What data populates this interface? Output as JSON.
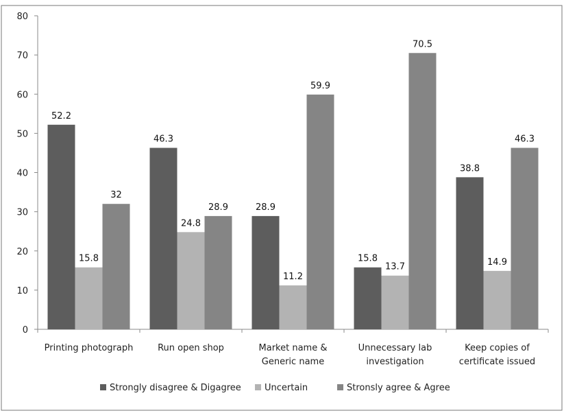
{
  "chart_data": {
    "type": "bar",
    "title": "",
    "xlabel": "",
    "ylabel": "",
    "ylim": [
      0,
      80
    ],
    "yticks": [
      0,
      10,
      20,
      30,
      40,
      50,
      60,
      70,
      80
    ],
    "grid": false,
    "legend_position": "bottom",
    "categories": [
      [
        "Printing photograph"
      ],
      [
        "Run open shop"
      ],
      [
        "Market name &",
        "Generic name"
      ],
      [
        "Unnecessary lab",
        "investigation"
      ],
      [
        "Keep copies of",
        "certificate issued"
      ]
    ],
    "value_labels": [
      [
        "52.2",
        "15.8",
        "32"
      ],
      [
        "46.3",
        "24.8",
        "28.9"
      ],
      [
        "28.9",
        "11.2",
        "59.9"
      ],
      [
        "15.8",
        "13.7",
        "70.5"
      ],
      [
        "38.8",
        "14.9",
        "46.3"
      ]
    ],
    "series": [
      {
        "name": "Strongly disagree & Digagree",
        "color": "#5d5d5d",
        "values": [
          52.2,
          46.3,
          28.9,
          15.8,
          38.8
        ]
      },
      {
        "name": "Uncertain",
        "color": "#b3b3b3",
        "values": [
          15.8,
          24.8,
          11.2,
          13.7,
          14.9
        ]
      },
      {
        "name": "Stronsly agree & Agree",
        "color": "#858585",
        "values": [
          32,
          28.9,
          59.9,
          70.5,
          46.3
        ]
      }
    ]
  }
}
